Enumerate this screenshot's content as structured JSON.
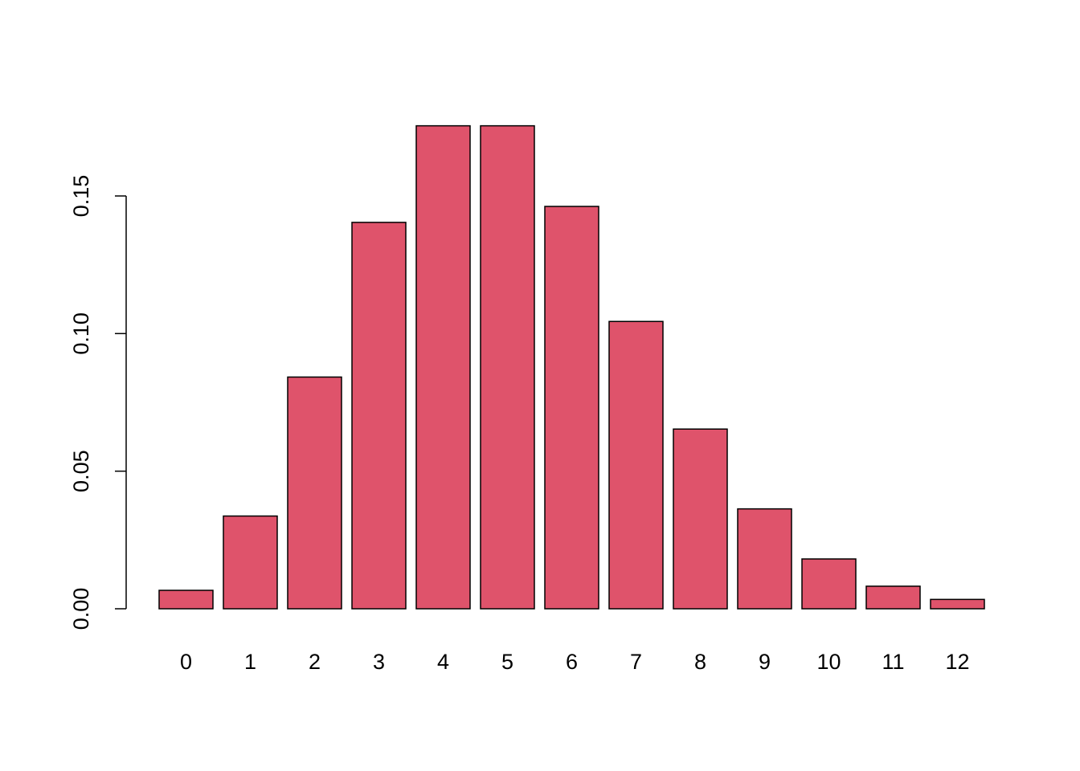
{
  "chart_data": {
    "type": "bar",
    "title": "",
    "xlabel": "",
    "ylabel": "",
    "categories": [
      "0",
      "1",
      "2",
      "3",
      "4",
      "5",
      "6",
      "7",
      "8",
      "9",
      "10",
      "11",
      "12"
    ],
    "values": [
      0.0067,
      0.0337,
      0.0842,
      0.1404,
      0.1755,
      0.1755,
      0.1462,
      0.1044,
      0.0653,
      0.0363,
      0.0181,
      0.0082,
      0.0034
    ],
    "ylim": [
      0,
      0.1755
    ],
    "yticks": [
      "0.00",
      "0.05",
      "0.10",
      "0.15"
    ],
    "ytick_values": [
      0,
      0.05,
      0.1,
      0.15
    ],
    "bar_color": "#DF536B",
    "bar_border_color": "#000000",
    "grid": false,
    "legend": "none"
  }
}
